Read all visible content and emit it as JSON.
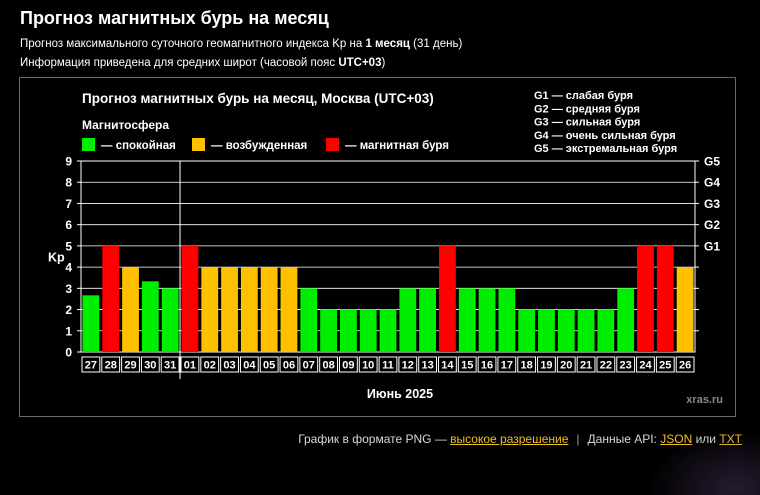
{
  "page": {
    "title": "Прогноз магнитных бурь на месяц",
    "subtitle1_prefix": "Прогноз максимального суточного геомагнитного индекса Kp на ",
    "subtitle1_bold": "1 месяц",
    "subtitle1_suffix": " (31 день)",
    "subtitle2_prefix": "Информация приведена для средних широт (часовой пояс ",
    "subtitle2_bold": "UTC+03",
    "subtitle2_suffix": ")"
  },
  "footer": {
    "png_text": "График в формате PNG — ",
    "png_link": "высокое разрешение",
    "separator": "|",
    "api_text": "Данные API: ",
    "api_json": "JSON",
    "api_or": " или ",
    "api_txt": "TXT"
  },
  "chart_data": {
    "type": "bar",
    "title": "Прогноз магнитных бурь на месяц, Москва (UTC+03)",
    "legend_title": "Магнитосфера",
    "legend": [
      {
        "label": "— спокойная",
        "color": "#00ee00"
      },
      {
        "label": "— возбужденная",
        "color": "#ffc000"
      },
      {
        "label": "— магнитная буря",
        "color": "#ff0000"
      }
    ],
    "g_legend": [
      "G1 — слабая буря",
      "G2 — средняя буря",
      "G3 — сильная буря",
      "G4 — очень сильная буря",
      "G5 — экстремальная буря"
    ],
    "ylabel": "Kp",
    "xlabel": "Июнь 2025",
    "ylim": [
      0,
      9
    ],
    "yticks": [
      "0",
      "1",
      "2",
      "3",
      "4",
      "5",
      "6",
      "7",
      "8",
      "9"
    ],
    "g_levels": [
      {
        "label": "G1",
        "kp": 5
      },
      {
        "label": "G2",
        "kp": 6
      },
      {
        "label": "G3",
        "kp": 7
      },
      {
        "label": "G4",
        "kp": 8
      },
      {
        "label": "G5",
        "kp": 9
      }
    ],
    "categories": [
      "27",
      "28",
      "29",
      "30",
      "31",
      "01",
      "02",
      "03",
      "04",
      "05",
      "06",
      "07",
      "08",
      "09",
      "10",
      "11",
      "12",
      "13",
      "14",
      "15",
      "16",
      "17",
      "18",
      "19",
      "20",
      "21",
      "22",
      "23",
      "24",
      "25",
      "26"
    ],
    "values": [
      2.67,
      5,
      4,
      3.33,
      3,
      5,
      4,
      4,
      4,
      4,
      4,
      3,
      2,
      2,
      2,
      2,
      3,
      3,
      5,
      3,
      3,
      3,
      2,
      2,
      2,
      2,
      2,
      3,
      5,
      5,
      4
    ],
    "colors": {
      "calm": "#00ee00",
      "excited": "#ffc000",
      "storm": "#ff0000"
    },
    "month_divider_after": "31",
    "grid": true,
    "watermark": "xras.ru"
  }
}
